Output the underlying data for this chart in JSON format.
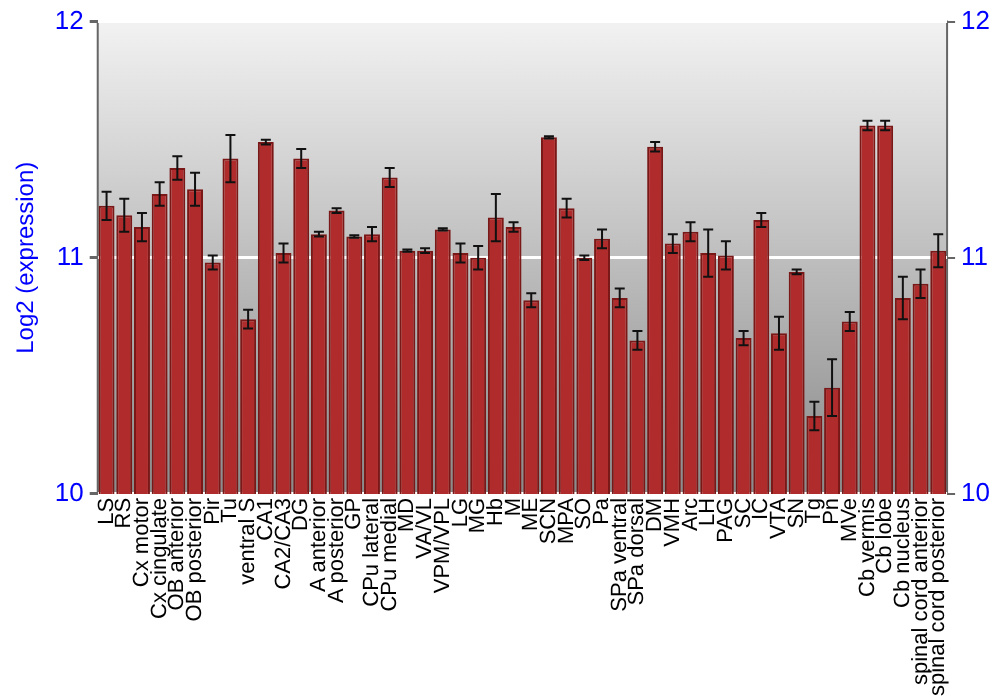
{
  "chart_data": {
    "type": "bar",
    "ylabel": "Log2 (expression)",
    "categories": [
      "LS",
      "RS",
      "Cx motor",
      "Cx cingulate",
      "OB anterior",
      "OB posterior",
      "Pir",
      "Tu",
      "ventral S",
      "CA1",
      "CA2/CA3",
      "DG",
      "A anterior",
      "A posterior",
      "GP",
      "CPu lateral",
      "CPu medial",
      "MD",
      "VA/VL",
      "VPM/VPL",
      "LG",
      "MG",
      "Hb",
      "M",
      "ME",
      "SCN",
      "MPA",
      "SO",
      "Pa",
      "SPa ventral",
      "SPa dorsal",
      "DM",
      "VMH",
      "Arc",
      "LH",
      "PAG",
      "SC",
      "IC",
      "VTA",
      "SN",
      "Tg",
      "Pn",
      "MVe",
      "Cb vermis",
      "Cb lobe",
      "Cb nucleus",
      "spinal cord anterior",
      "spinal cord posterior"
    ],
    "values": [
      11.22,
      11.18,
      11.13,
      11.27,
      11.38,
      11.29,
      10.98,
      11.42,
      10.74,
      11.49,
      11.02,
      11.42,
      11.1,
      11.2,
      11.09,
      11.1,
      11.34,
      11.03,
      11.03,
      11.12,
      11.02,
      11.0,
      11.17,
      11.13,
      10.82,
      11.51,
      11.21,
      11.0,
      11.08,
      10.83,
      10.65,
      11.47,
      11.06,
      11.11,
      11.02,
      11.01,
      10.66,
      11.16,
      10.68,
      10.94,
      10.33,
      10.45,
      10.73,
      11.56,
      11.56,
      10.83,
      10.89,
      11.03
    ],
    "errors": [
      0.06,
      0.07,
      0.06,
      0.05,
      0.05,
      0.07,
      0.03,
      0.1,
      0.04,
      0.01,
      0.04,
      0.04,
      0.01,
      0.01,
      0.005,
      0.03,
      0.04,
      0.005,
      0.01,
      0.005,
      0.04,
      0.05,
      0.1,
      0.02,
      0.03,
      0.005,
      0.04,
      0.01,
      0.04,
      0.04,
      0.04,
      0.02,
      0.04,
      0.04,
      0.1,
      0.06,
      0.03,
      0.03,
      0.07,
      0.01,
      0.06,
      0.12,
      0.04,
      0.02,
      0.02,
      0.09,
      0.06,
      0.07
    ],
    "color": "#b02c2c",
    "ylim": [
      10,
      12
    ],
    "yticks": [
      10,
      11,
      12
    ],
    "y2lim": [
      10,
      12
    ],
    "y2ticks": [
      10,
      11,
      12
    ],
    "grid": "y",
    "legend": false
  }
}
